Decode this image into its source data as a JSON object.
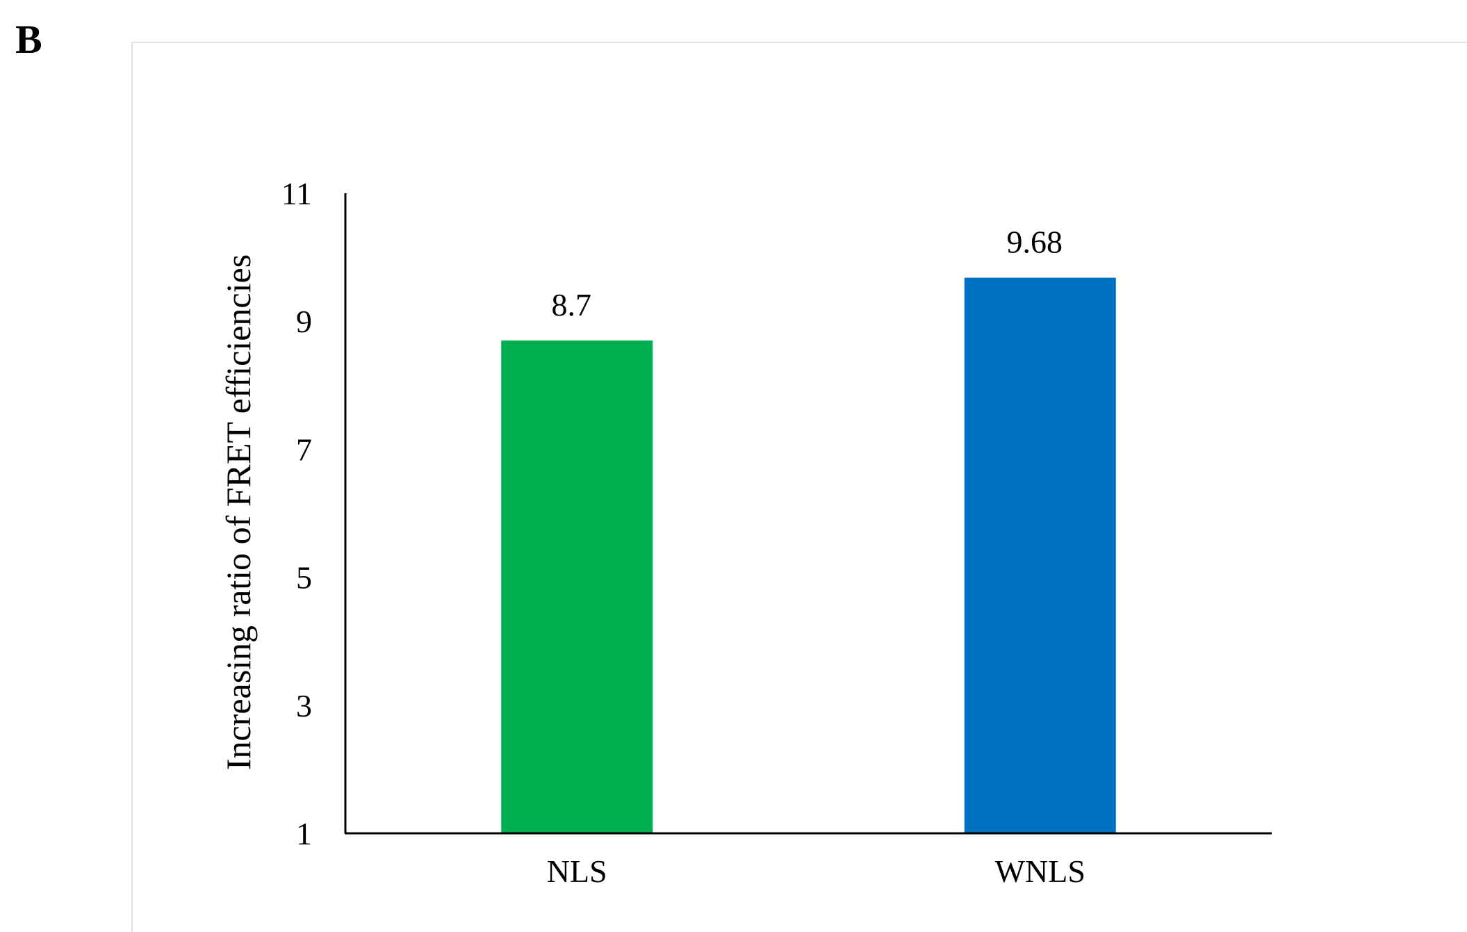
{
  "panel_label": "B",
  "chart_data": {
    "type": "bar",
    "title": "",
    "xlabel": "",
    "ylabel": "Increasing ratio of FRET efficiencies",
    "categories": [
      "NLS",
      "WNLS"
    ],
    "values": [
      8.7,
      9.68
    ],
    "data_labels": [
      "8.7",
      "9.68"
    ],
    "colors": [
      "#00b050",
      "#0070c0"
    ],
    "ylim": [
      1,
      11
    ],
    "yticks": [
      1,
      3,
      5,
      7,
      9,
      11
    ],
    "grid": false,
    "legend": "none"
  }
}
